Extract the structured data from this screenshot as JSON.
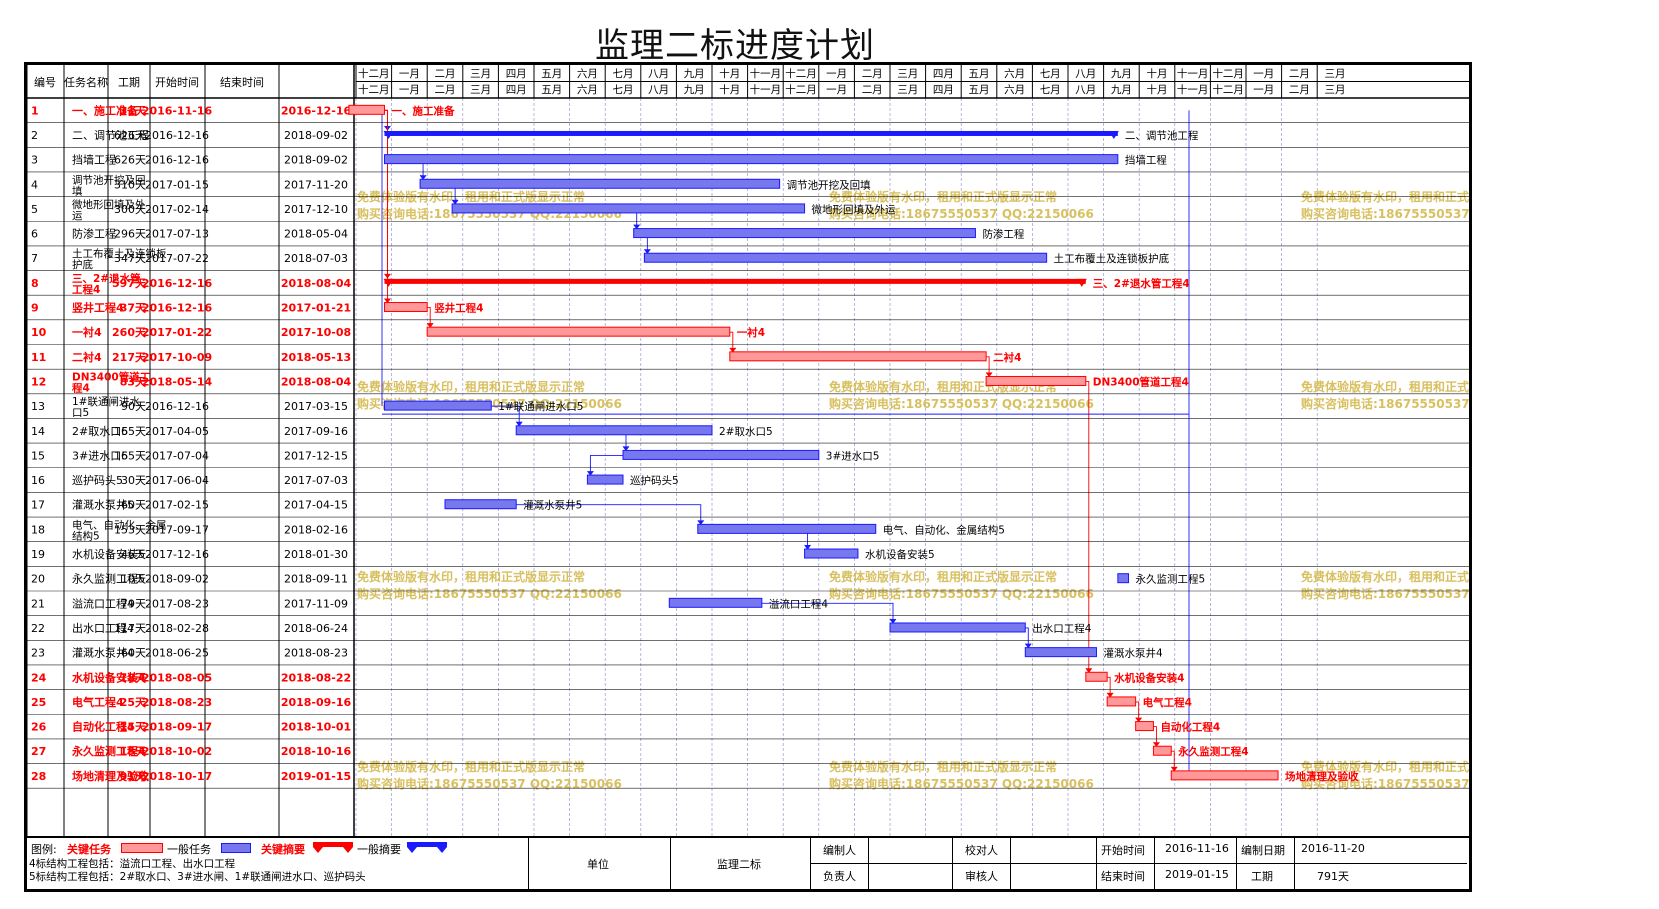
{
  "title": "监理二标进度计划",
  "headers": {
    "id": "编号",
    "name": "任务名称",
    "duration": "工期",
    "start": "开始时间",
    "end": "结束时间"
  },
  "timeline": {
    "top": [
      "十二月",
      "一月",
      "二月",
      "三月",
      "四月",
      "五月",
      "六月",
      "七月",
      "八月",
      "九月",
      "十月",
      "十一月",
      "十二月",
      "一月",
      "二月",
      "三月",
      "四月",
      "五月",
      "六月",
      "七月",
      "八月",
      "九月",
      "十月",
      "十一月",
      "十二月",
      "一月",
      "二月",
      "三月"
    ],
    "bottom": [
      "十二月",
      "一月",
      "二月",
      "三月",
      "四月",
      "五月",
      "六月",
      "七月",
      "八月",
      "九月",
      "十月",
      "十一月",
      "十二月",
      "一月",
      "二月",
      "三月",
      "四月",
      "五月",
      "六月",
      "七月",
      "八月",
      "九月",
      "十月",
      "十一月",
      "十二月",
      "一月",
      "二月",
      "三月"
    ]
  },
  "tasks": [
    {
      "id": "1",
      "name": "一、施工准备",
      "duration": "31天",
      "start": "2016-11-16",
      "end": "2016-12-16",
      "type": "critical",
      "bar_label": "一、施工准备",
      "start_month": -0.2,
      "end_month": 0.8
    },
    {
      "id": "2",
      "name": "二、调节池工程",
      "duration": "626天",
      "start": "2016-12-16",
      "end": "2018-09-02",
      "type": "summary",
      "bar_label": "二、调节池工程",
      "start_month": 0.8,
      "end_month": 21.4
    },
    {
      "id": "3",
      "name": "挡墙工程",
      "duration": "626天",
      "start": "2016-12-16",
      "end": "2018-09-02",
      "type": "normal",
      "bar_label": "挡墙工程",
      "start_month": 0.8,
      "end_month": 21.4
    },
    {
      "id": "4",
      "name": "调节池开挖及回填",
      "duration": "310天",
      "start": "2017-01-15",
      "end": "2017-11-20",
      "type": "normal",
      "bar_label": "调节池开挖及回填",
      "start_month": 1.8,
      "end_month": 11.9
    },
    {
      "id": "5",
      "name": "微地形回填及外运",
      "duration": "300天",
      "start": "2017-02-14",
      "end": "2017-12-10",
      "type": "normal",
      "bar_label": "微地形回填及外运",
      "start_month": 2.7,
      "end_month": 12.6
    },
    {
      "id": "6",
      "name": "防渗工程",
      "duration": "296天",
      "start": "2017-07-13",
      "end": "2018-05-04",
      "type": "normal",
      "bar_label": "防渗工程",
      "start_month": 7.8,
      "end_month": 17.4
    },
    {
      "id": "7",
      "name": "土工布覆土及连锁板护底",
      "duration": "347天",
      "start": "2017-07-22",
      "end": "2018-07-03",
      "type": "normal",
      "bar_label": "土工布覆土及连锁板护底",
      "start_month": 8.1,
      "end_month": 19.4
    },
    {
      "id": "8",
      "name": "三、2#退水管工程4",
      "duration": "597天",
      "start": "2016-12-16",
      "end": "2018-08-04",
      "type": "critical_summary",
      "bar_label": "三、2#退水管工程4",
      "start_month": 0.8,
      "end_month": 20.5
    },
    {
      "id": "9",
      "name": "竖井工程4",
      "duration": "37天",
      "start": "2016-12-16",
      "end": "2017-01-21",
      "type": "critical",
      "bar_label": "竖井工程4",
      "start_month": 0.8,
      "end_month": 2.0
    },
    {
      "id": "10",
      "name": "一衬4",
      "duration": "260天",
      "start": "2017-01-22",
      "end": "2017-10-08",
      "type": "critical",
      "bar_label": "一衬4",
      "start_month": 2.0,
      "end_month": 10.5
    },
    {
      "id": "11",
      "name": "二衬4",
      "duration": "217天",
      "start": "2017-10-09",
      "end": "2018-05-13",
      "type": "critical",
      "bar_label": "二衬4",
      "start_month": 10.5,
      "end_month": 17.7
    },
    {
      "id": "12",
      "name": "DN3400管道工程4",
      "duration": "83天",
      "start": "2018-05-14",
      "end": "2018-08-04",
      "type": "critical",
      "bar_label": "DN3400管道工程4",
      "start_month": 17.7,
      "end_month": 20.5
    },
    {
      "id": "13",
      "name": "1#联通闸进水口5",
      "duration": "90天",
      "start": "2016-12-16",
      "end": "2017-03-15",
      "type": "normal",
      "bar_label": "1#联通闸进水口5",
      "start_month": 0.8,
      "end_month": 3.8
    },
    {
      "id": "14",
      "name": "2#取水口5",
      "duration": "165天",
      "start": "2017-04-05",
      "end": "2017-09-16",
      "type": "normal",
      "bar_label": "2#取水口5",
      "start_month": 4.5,
      "end_month": 10.0
    },
    {
      "id": "15",
      "name": "3#进水口5",
      "duration": "165天",
      "start": "2017-07-04",
      "end": "2017-12-15",
      "type": "normal",
      "bar_label": "3#进水口5",
      "start_month": 7.5,
      "end_month": 13.0
    },
    {
      "id": "16",
      "name": "巡护码头5",
      "duration": "30天",
      "start": "2017-06-04",
      "end": "2017-07-03",
      "type": "normal",
      "bar_label": "巡护码头5",
      "start_month": 6.5,
      "end_month": 7.5
    },
    {
      "id": "17",
      "name": "灌溉水泵井5",
      "duration": "60天",
      "start": "2017-02-15",
      "end": "2017-04-15",
      "type": "normal",
      "bar_label": "灌溉水泵井5",
      "start_month": 2.5,
      "end_month": 4.5
    },
    {
      "id": "18",
      "name": "电气、自动化、金属结构5",
      "duration": "153天",
      "start": "2017-09-17",
      "end": "2018-02-16",
      "type": "normal",
      "bar_label": "电气、自动化、金属结构5",
      "start_month": 9.6,
      "end_month": 14.6
    },
    {
      "id": "19",
      "name": "水机设备安装5",
      "duration": "46天",
      "start": "2017-12-16",
      "end": "2018-01-30",
      "type": "normal",
      "bar_label": "水机设备安装5",
      "start_month": 12.6,
      "end_month": 14.1
    },
    {
      "id": "20",
      "name": "永久监测工程5",
      "duration": "10天",
      "start": "2018-09-02",
      "end": "2018-09-11",
      "type": "normal",
      "bar_label": "永久监测工程5",
      "start_month": 21.4,
      "end_month": 21.7
    },
    {
      "id": "21",
      "name": "溢流口工程4",
      "duration": "79天",
      "start": "2017-08-23",
      "end": "2017-11-09",
      "type": "normal",
      "bar_label": "溢流口工程4",
      "start_month": 8.8,
      "end_month": 11.4
    },
    {
      "id": "22",
      "name": "出水口工程4",
      "duration": "117天",
      "start": "2018-02-28",
      "end": "2018-06-24",
      "type": "normal",
      "bar_label": "出水口工程4",
      "start_month": 15.0,
      "end_month": 18.8
    },
    {
      "id": "23",
      "name": "灌溉水泵井4",
      "duration": "60天",
      "start": "2018-06-25",
      "end": "2018-08-23",
      "type": "normal",
      "bar_label": "灌溉水泵井4",
      "start_month": 18.8,
      "end_month": 20.8
    },
    {
      "id": "24",
      "name": "水机设备安装4",
      "duration": "18天",
      "start": "2018-08-05",
      "end": "2018-08-22",
      "type": "critical",
      "bar_label": "水机设备安装4",
      "start_month": 20.5,
      "end_month": 21.1
    },
    {
      "id": "25",
      "name": "电气工程4",
      "duration": "25天",
      "start": "2018-08-23",
      "end": "2018-09-16",
      "type": "critical",
      "bar_label": "电气工程4",
      "start_month": 21.1,
      "end_month": 21.9
    },
    {
      "id": "26",
      "name": "自动化工程4",
      "duration": "15天",
      "start": "2018-09-17",
      "end": "2018-10-01",
      "type": "critical",
      "bar_label": "自动化工程4",
      "start_month": 21.9,
      "end_month": 22.4
    },
    {
      "id": "27",
      "name": "永久监测工程4",
      "duration": "15天",
      "start": "2018-10-02",
      "end": "2018-10-16",
      "type": "critical",
      "bar_label": "永久监测工程4",
      "start_month": 22.4,
      "end_month": 22.9
    },
    {
      "id": "28",
      "name": "场地清理及验收",
      "duration": "91天",
      "start": "2018-10-17",
      "end": "2019-01-15",
      "type": "critical",
      "bar_label": "场地清理及验收",
      "start_month": 22.9,
      "end_month": 25.9
    }
  ],
  "watermark": {
    "line1": "免费体验版有水印，租用和正式版显示正常",
    "line2": "购买咨询电话:18675550537 QQ:22150066"
  },
  "legend": {
    "label": "图例:",
    "critical": "关键任务",
    "normal": "一般任务",
    "critical_summary": "关键摘要",
    "summary": "一般摘要",
    "note1": "4标结构工程包括：溢流口工程、出水口工程",
    "note2": "5标结构工程包括：2#取水口、3#进水闸、1#联通闸进水口、巡护码头"
  },
  "footer": {
    "unit_label": "单位",
    "unit_value": "监理二标",
    "compiler": "编制人",
    "checker": "校对人",
    "leader": "负责人",
    "reviewer": "审核人",
    "start_label": "开始时间",
    "start_value": "2016-11-16",
    "date_label": "编制日期",
    "date_value": "2016-11-20",
    "end_label": "结束时间",
    "end_value": "2019-01-15",
    "duration_label": "工期",
    "duration_value": "791天"
  },
  "colors": {
    "critical": "#ff0000",
    "critical_fill": "#ff9999",
    "normal": "#1a1aff",
    "normal_fill": "#7777ee",
    "grid": "#9999cc",
    "watermark": "#d8c060"
  }
}
